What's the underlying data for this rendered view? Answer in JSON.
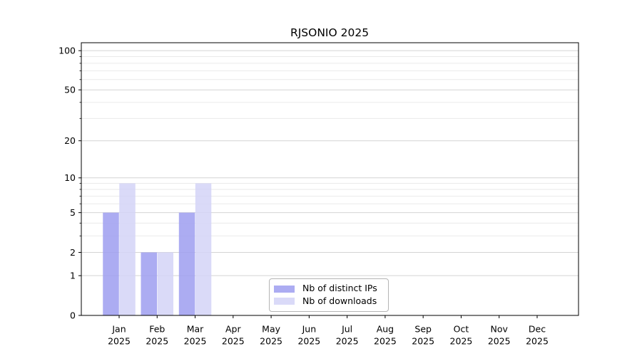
{
  "title": "RJSONIO 2025",
  "chart_data": {
    "type": "bar",
    "title": "RJSONIO 2025",
    "categories": [
      "Jan",
      "Feb",
      "Mar",
      "Apr",
      "May",
      "Jun",
      "Jul",
      "Aug",
      "Sep",
      "Oct",
      "Nov",
      "Dec"
    ],
    "x_year_label": "2025",
    "series": [
      {
        "name": "Nb of distinct IPs",
        "color": "#9d9df0",
        "values": [
          5,
          2,
          5,
          0,
          0,
          0,
          0,
          0,
          0,
          0,
          0,
          0
        ]
      },
      {
        "name": "Nb of downloads",
        "color": "#d4d4f7",
        "values": [
          9,
          2,
          9,
          0,
          0,
          0,
          0,
          0,
          0,
          0,
          0,
          0
        ]
      }
    ],
    "bar_fill_opacity": 0.85,
    "yscale": "log10(1+v)",
    "ylim": [
      0,
      115
    ],
    "y_major_ticks": [
      0,
      1,
      2,
      5,
      10,
      20,
      50,
      100
    ],
    "y_minor_ticks": [
      3,
      4,
      6,
      7,
      8,
      9,
      30,
      40,
      60,
      70,
      80,
      90
    ],
    "grid": true,
    "legend_position": "lower-center-inside"
  },
  "colors": {
    "background": "#ffffff",
    "axis": "#000000",
    "grid_major": "#d4d4d4",
    "grid_minor": "#eaeaea",
    "tick_text": "#000000",
    "legend_border": "#b4b4b4"
  }
}
